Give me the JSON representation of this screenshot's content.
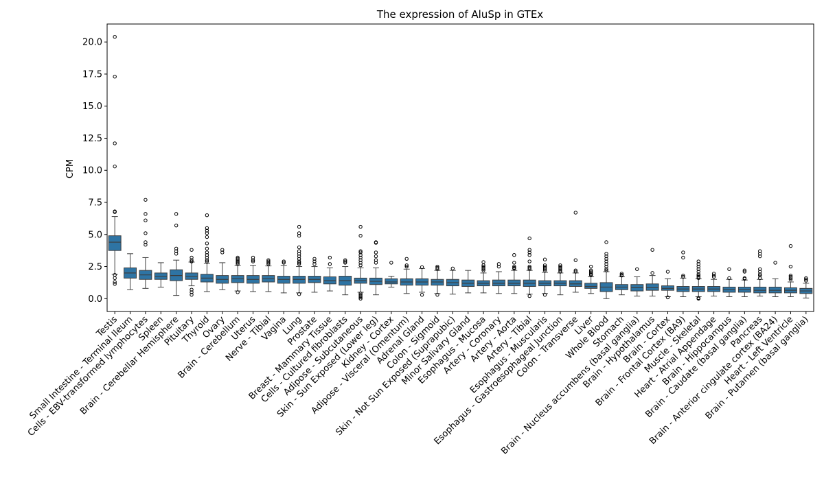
{
  "chart_data": {
    "type": "box",
    "title": "The expression of AluSp in GTEx",
    "xlabel": "",
    "ylabel": "CPM",
    "ylim": [
      -1.0,
      21.4
    ],
    "yticks": [
      0.0,
      2.5,
      5.0,
      7.5,
      10.0,
      12.5,
      15.0,
      17.5,
      20.0
    ],
    "ytick_labels": [
      "0.0",
      "2.5",
      "5.0",
      "7.5",
      "10.0",
      "12.5",
      "15.0",
      "17.5",
      "20.0"
    ],
    "box_color": "#2e74a4",
    "grid": false,
    "categories": [
      "Testis",
      "Small Intestine - Terminal Ileum",
      "Cells - EBV-transformed lymphocytes",
      "Spleen",
      "Brain - Cerebellar Hemisphere",
      "Pituitary",
      "Thyroid",
      "Ovary",
      "Brain - Cerebellum",
      "Uterus",
      "Nerve - Tibial",
      "Vagina",
      "Lung",
      "Prostate",
      "Breast - Mammary Tissue",
      "Cells - Cultured fibroblasts",
      "Adipose - Subcutaneous",
      "Skin - Sun Exposed (Lower leg)",
      "Kidney - Cortex",
      "Adipose - Visceral (Omentum)",
      "Adrenal Gland",
      "Colon - Sigmoid",
      "Skin - Not Sun Exposed (Suprapubic)",
      "Minor Salivary Gland",
      "Esophagus - Mucosa",
      "Artery - Coronary",
      "Artery - Aorta",
      "Artery - Tibial",
      "Esophagus - Muscularis",
      "Esophagus - Gastroesophageal Junction",
      "Colon - Transverse",
      "Liver",
      "Whole Blood",
      "Stomach",
      "Brain - Nucleus accumbens (basal ganglia)",
      "Brain - Hypothalamus",
      "Brain - Cortex",
      "Brain - Frontal Cortex (BA9)",
      "Muscle - Skeletal",
      "Heart - Atrial Appendage",
      "Brain - Hippocampus",
      "Brain - Caudate (basal ganglia)",
      "Pancreas",
      "Brain - Anterior cingulate cortex (BA24)",
      "Heart - Left Ventricle",
      "Brain - Putamen (basal ganglia)"
    ],
    "boxes": [
      {
        "whislo": 1.9,
        "q1": 3.75,
        "med": 4.4,
        "q3": 4.9,
        "whishi": 6.4,
        "fliers": [
          20.4,
          17.3,
          12.1,
          10.3,
          6.8,
          6.75,
          1.85,
          1.6,
          1.3,
          1.15
        ]
      },
      {
        "whislo": 0.7,
        "q1": 1.6,
        "med": 2.0,
        "q3": 2.4,
        "whishi": 3.5,
        "fliers": []
      },
      {
        "whislo": 0.8,
        "q1": 1.5,
        "med": 1.85,
        "q3": 2.2,
        "whishi": 3.2,
        "fliers": [
          7.7,
          6.6,
          6.1,
          5.1,
          4.4,
          4.2
        ]
      },
      {
        "whislo": 0.9,
        "q1": 1.5,
        "med": 1.75,
        "q3": 2.0,
        "whishi": 2.8,
        "fliers": []
      },
      {
        "whislo": 0.25,
        "q1": 1.4,
        "med": 1.8,
        "q3": 2.25,
        "whishi": 3.0,
        "fliers": [
          6.6,
          5.7,
          3.9,
          3.7,
          3.5
        ]
      },
      {
        "whislo": 1.0,
        "q1": 1.5,
        "med": 1.75,
        "q3": 2.0,
        "whishi": 2.85,
        "fliers": [
          3.8,
          3.2,
          3.0,
          2.9,
          0.7,
          0.5,
          0.3
        ]
      },
      {
        "whislo": 0.55,
        "q1": 1.3,
        "med": 1.6,
        "q3": 1.9,
        "whishi": 2.75,
        "fliers": [
          6.5,
          5.5,
          5.3,
          5.1,
          4.8,
          4.3,
          3.9,
          3.6,
          3.4,
          3.2,
          3.0,
          2.9
        ]
      },
      {
        "whislo": 0.7,
        "q1": 1.2,
        "med": 1.5,
        "q3": 1.8,
        "whishi": 2.8,
        "fliers": [
          3.8,
          3.6
        ]
      },
      {
        "whislo": 0.6,
        "q1": 1.25,
        "med": 1.55,
        "q3": 1.8,
        "whishi": 2.6,
        "fliers": [
          3.2,
          3.1,
          3.0,
          2.9,
          2.8,
          2.7,
          0.5
        ]
      },
      {
        "whislo": 0.55,
        "q1": 1.2,
        "med": 1.5,
        "q3": 1.8,
        "whishi": 2.6,
        "fliers": [
          3.2,
          3.0,
          2.9
        ]
      },
      {
        "whislo": 0.55,
        "q1": 1.3,
        "med": 1.55,
        "q3": 1.8,
        "whishi": 2.55,
        "fliers": [
          3.0,
          2.9,
          2.8,
          2.7
        ]
      },
      {
        "whislo": 0.45,
        "q1": 1.2,
        "med": 1.5,
        "q3": 1.75,
        "whishi": 2.6,
        "fliers": [
          2.9,
          2.8
        ]
      },
      {
        "whislo": 0.45,
        "q1": 1.2,
        "med": 1.5,
        "q3": 1.75,
        "whishi": 2.5,
        "fliers": [
          5.6,
          5.1,
          4.9,
          4.0,
          3.7,
          3.5,
          3.3,
          3.1,
          2.9,
          2.8,
          2.7,
          0.35
        ]
      },
      {
        "whislo": 0.5,
        "q1": 1.25,
        "med": 1.5,
        "q3": 1.75,
        "whishi": 2.5,
        "fliers": [
          3.1,
          2.9,
          2.7
        ]
      },
      {
        "whislo": 0.6,
        "q1": 1.15,
        "med": 1.4,
        "q3": 1.7,
        "whishi": 2.4,
        "fliers": [
          3.2,
          2.7
        ]
      },
      {
        "whislo": 0.3,
        "q1": 1.05,
        "med": 1.4,
        "q3": 1.75,
        "whishi": 2.5,
        "fliers": [
          3.0,
          2.9,
          2.8
        ]
      },
      {
        "whislo": 0.5,
        "q1": 1.2,
        "med": 1.4,
        "q3": 1.6,
        "whishi": 2.4,
        "fliers": [
          5.6,
          4.9,
          3.7,
          3.6,
          3.4,
          3.2,
          3.0,
          2.8,
          2.6,
          0.4,
          0.3,
          0.2,
          0.1,
          0.0
        ]
      },
      {
        "whislo": 0.3,
        "q1": 1.1,
        "med": 1.35,
        "q3": 1.6,
        "whishi": 2.4,
        "fliers": [
          4.4,
          4.35,
          3.6,
          3.3,
          3.0,
          2.8
        ]
      },
      {
        "whislo": 0.9,
        "q1": 1.15,
        "med": 1.3,
        "q3": 1.55,
        "whishi": 1.75,
        "fliers": [
          2.8
        ]
      },
      {
        "whislo": 0.4,
        "q1": 1.05,
        "med": 1.3,
        "q3": 1.55,
        "whishi": 2.3,
        "fliers": [
          3.1,
          2.6,
          2.5
        ]
      },
      {
        "whislo": 0.5,
        "q1": 1.05,
        "med": 1.3,
        "q3": 1.55,
        "whishi": 2.35,
        "fliers": [
          2.45,
          0.3
        ]
      },
      {
        "whislo": 0.4,
        "q1": 1.05,
        "med": 1.3,
        "q3": 1.5,
        "whishi": 2.2,
        "fliers": [
          2.5,
          2.4,
          2.3,
          0.3
        ]
      },
      {
        "whislo": 0.35,
        "q1": 1.0,
        "med": 1.25,
        "q3": 1.5,
        "whishi": 2.2,
        "fliers": [
          2.35
        ]
      },
      {
        "whislo": 0.45,
        "q1": 0.95,
        "med": 1.2,
        "q3": 1.45,
        "whishi": 2.2,
        "fliers": []
      },
      {
        "whislo": 0.45,
        "q1": 1.0,
        "med": 1.2,
        "q3": 1.4,
        "whishi": 2.0,
        "fliers": [
          2.85,
          2.6,
          2.5,
          2.4,
          2.3,
          2.2
        ]
      },
      {
        "whislo": 0.4,
        "q1": 1.0,
        "med": 1.2,
        "q3": 1.45,
        "whishi": 2.1,
        "fliers": [
          2.7,
          2.5
        ]
      },
      {
        "whislo": 0.4,
        "q1": 1.0,
        "med": 1.2,
        "q3": 1.45,
        "whishi": 2.2,
        "fliers": [
          3.4,
          2.8,
          2.5,
          2.4,
          2.35
        ]
      },
      {
        "whislo": 0.35,
        "q1": 0.95,
        "med": 1.2,
        "q3": 1.45,
        "whishi": 2.2,
        "fliers": [
          4.7,
          3.8,
          3.6,
          3.4,
          2.9,
          2.5,
          2.4,
          2.3,
          0.2
        ]
      },
      {
        "whislo": 0.4,
        "q1": 1.0,
        "med": 1.2,
        "q3": 1.4,
        "whishi": 2.05,
        "fliers": [
          3.05,
          2.6,
          2.5,
          2.4,
          2.3,
          2.2,
          0.3
        ]
      },
      {
        "whislo": 0.3,
        "q1": 1.0,
        "med": 1.2,
        "q3": 1.4,
        "whishi": 2.0,
        "fliers": [
          2.6,
          2.5,
          2.4,
          2.3,
          2.2,
          2.1
        ]
      },
      {
        "whislo": 0.5,
        "q1": 0.95,
        "med": 1.15,
        "q3": 1.4,
        "whishi": 2.0,
        "fliers": [
          6.7,
          3.0,
          2.2,
          2.1
        ]
      },
      {
        "whislo": 0.4,
        "q1": 0.8,
        "med": 0.95,
        "q3": 1.2,
        "whishi": 1.7,
        "fliers": [
          2.5,
          2.2,
          2.1,
          2.0,
          1.9,
          1.85
        ]
      },
      {
        "whislo": 0.0,
        "q1": 0.55,
        "med": 0.9,
        "q3": 1.25,
        "whishi": 2.1,
        "fliers": [
          4.4,
          3.5,
          3.3,
          3.1,
          2.9,
          2.7,
          2.5,
          2.3,
          2.2
        ]
      },
      {
        "whislo": 0.3,
        "q1": 0.7,
        "med": 0.9,
        "q3": 1.1,
        "whishi": 1.7,
        "fliers": [
          1.95,
          1.85,
          1.8
        ]
      },
      {
        "whislo": 0.2,
        "q1": 0.6,
        "med": 0.85,
        "q3": 1.1,
        "whishi": 1.7,
        "fliers": [
          2.3
        ]
      },
      {
        "whislo": 0.2,
        "q1": 0.65,
        "med": 0.85,
        "q3": 1.15,
        "whishi": 1.8,
        "fliers": [
          3.8,
          2.0
        ]
      },
      {
        "whislo": 0.15,
        "q1": 0.65,
        "med": 0.8,
        "q3": 1.0,
        "whishi": 1.55,
        "fliers": [
          2.1,
          0.1
        ]
      },
      {
        "whislo": 0.15,
        "q1": 0.55,
        "med": 0.75,
        "q3": 0.95,
        "whishi": 1.6,
        "fliers": [
          3.6,
          3.2,
          1.8,
          1.7
        ]
      },
      {
        "whislo": 0.15,
        "q1": 0.55,
        "med": 0.75,
        "q3": 0.95,
        "whishi": 1.55,
        "fliers": [
          2.9,
          2.7,
          2.5,
          2.3,
          2.1,
          1.9,
          1.8,
          1.7,
          1.6,
          0.05,
          0.0
        ]
      },
      {
        "whislo": 0.2,
        "q1": 0.55,
        "med": 0.75,
        "q3": 0.95,
        "whishi": 1.5,
        "fliers": [
          1.95,
          1.8,
          1.7
        ]
      },
      {
        "whislo": 0.15,
        "q1": 0.5,
        "med": 0.7,
        "q3": 0.9,
        "whishi": 1.5,
        "fliers": [
          2.3,
          1.6
        ]
      },
      {
        "whislo": 0.15,
        "q1": 0.5,
        "med": 0.7,
        "q3": 0.9,
        "whishi": 1.45,
        "fliers": [
          2.2,
          2.1,
          1.6,
          1.55
        ]
      },
      {
        "whislo": 0.2,
        "q1": 0.45,
        "med": 0.65,
        "q3": 0.9,
        "whishi": 1.5,
        "fliers": [
          3.7,
          3.5,
          3.3,
          2.3,
          2.1,
          1.9,
          1.8,
          1.6
        ]
      },
      {
        "whislo": 0.15,
        "q1": 0.45,
        "med": 0.65,
        "q3": 0.9,
        "whishi": 1.55,
        "fliers": [
          2.8
        ]
      },
      {
        "whislo": 0.15,
        "q1": 0.45,
        "med": 0.65,
        "q3": 0.85,
        "whishi": 1.3,
        "fliers": [
          4.1,
          2.5,
          1.8,
          1.7,
          1.6,
          1.5
        ]
      },
      {
        "whislo": 0.05,
        "q1": 0.4,
        "med": 0.6,
        "q3": 0.8,
        "whishi": 1.2,
        "fliers": [
          1.6,
          1.5,
          1.4
        ]
      }
    ]
  }
}
